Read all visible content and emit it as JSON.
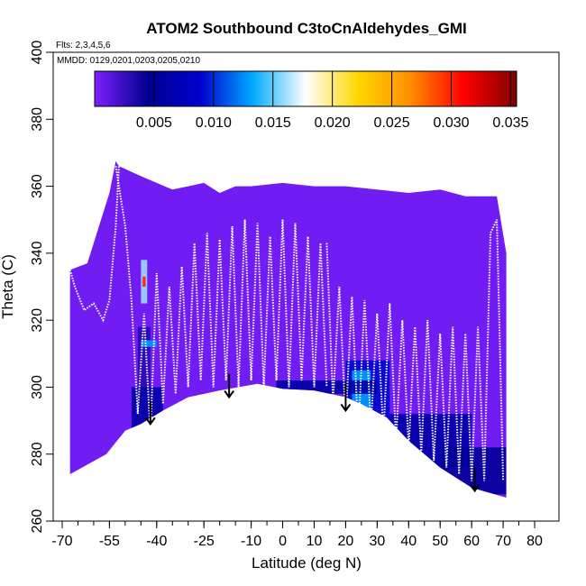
{
  "chart_data": {
    "type": "heatmap",
    "title": "ATOM2 Southbound C3toCnAldehydes_GMI",
    "flights_note": "Flts: 2,3,4,5,6",
    "dates_note": "MMDD: 0129,0201,0203,0205,0210",
    "xlabel": "Latitude (deg N)",
    "ylabel": "Theta (C)",
    "xlim": [
      -72,
      84
    ],
    "ylim": [
      260,
      400
    ],
    "x_ticks": [
      -70,
      -55,
      -40,
      -25,
      -10,
      0,
      10,
      20,
      30,
      40,
      50,
      60,
      70,
      80
    ],
    "x_minor_step": 5,
    "y_ticks": [
      260,
      280,
      300,
      320,
      340,
      360,
      380,
      400
    ],
    "colorbar": {
      "min": 0.0,
      "max": 0.0355,
      "ticks": [
        0.005,
        0.01,
        0.015,
        0.02,
        0.025,
        0.03,
        0.035
      ],
      "tick_labels": [
        "0.005",
        "0.010",
        "0.015",
        "0.020",
        "0.025",
        "0.030",
        "0.035"
      ],
      "colors": [
        "#7f1fff",
        "#00008f",
        "#0000d0",
        "#00aaff",
        "#ffffff",
        "#ffd700",
        "#ff8c00",
        "#ff0000",
        "#7f0000"
      ]
    },
    "field_outline": {
      "upper": [
        [
          -67.5,
          335
        ],
        [
          -62,
          337
        ],
        [
          -55,
          358
        ],
        [
          -53,
          367.5
        ],
        [
          -52,
          366
        ],
        [
          -45,
          363
        ],
        [
          -40,
          361
        ],
        [
          -35,
          359
        ],
        [
          -30,
          360
        ],
        [
          -25,
          361
        ],
        [
          -20,
          358
        ],
        [
          -15,
          360
        ],
        [
          -10,
          360
        ],
        [
          0,
          361
        ],
        [
          10,
          360
        ],
        [
          20,
          360
        ],
        [
          30,
          359
        ],
        [
          40,
          358
        ],
        [
          50,
          359
        ],
        [
          58,
          357
        ],
        [
          68,
          357
        ],
        [
          71,
          340
        ],
        [
          71,
          267
        ]
      ],
      "lower": [
        [
          71,
          267
        ],
        [
          60,
          270
        ],
        [
          50,
          276
        ],
        [
          40,
          284
        ],
        [
          33,
          291
        ],
        [
          25,
          295
        ],
        [
          20,
          297
        ],
        [
          10,
          299
        ],
        [
          0,
          299.5
        ],
        [
          -8,
          301
        ],
        [
          -20,
          299
        ],
        [
          -30,
          297
        ],
        [
          -38,
          293
        ],
        [
          -45,
          289
        ],
        [
          -50,
          287
        ],
        [
          -56,
          280
        ],
        [
          -67.5,
          274
        ]
      ],
      "background_value": 0.0005
    },
    "field_patches": [
      {
        "lat": [
          -48,
          -38
        ],
        "theta": [
          282,
          300
        ],
        "value": 0.006
      },
      {
        "lat": [
          -46,
          -42
        ],
        "theta": [
          300,
          318
        ],
        "value": 0.003
      },
      {
        "lat": [
          -45,
          -43
        ],
        "theta": [
          325,
          338
        ],
        "value": 0.016
      },
      {
        "lat": [
          -44.5,
          -43.5
        ],
        "theta": [
          330,
          333
        ],
        "value": 0.03
      },
      {
        "lat": [
          -45,
          -40
        ],
        "theta": [
          312,
          314
        ],
        "value": 0.013
      },
      {
        "lat": [
          20,
          34
        ],
        "theta": [
          288,
          308
        ],
        "value": 0.009
      },
      {
        "lat": [
          22,
          28
        ],
        "theta": [
          292,
          305
        ],
        "value": 0.013
      },
      {
        "lat": [
          34,
          60
        ],
        "theta": [
          276,
          292
        ],
        "value": 0.006
      },
      {
        "lat": [
          50,
          71
        ],
        "theta": [
          268,
          282
        ],
        "value": 0.005
      },
      {
        "lat": [
          -2,
          30
        ],
        "theta": [
          298,
          302
        ],
        "value": 0.006
      }
    ],
    "flight_tracks": [
      {
        "lat": [
          -67.5,
          -66,
          -63,
          -60,
          -57,
          -55,
          -53,
          -52
        ],
        "theta": [
          335,
          330,
          323,
          325,
          320,
          326,
          348,
          366
        ]
      },
      {
        "lat": [
          -53,
          -50,
          -48,
          -46,
          -44,
          -42,
          -40,
          -38,
          -36,
          -34,
          -32,
          -30,
          -28,
          -26,
          -24,
          -22,
          -20
        ],
        "theta": [
          366,
          348,
          326,
          292,
          322,
          286,
          334,
          295,
          330,
          298,
          336,
          300,
          343,
          302,
          346,
          300,
          344
        ]
      },
      {
        "lat": [
          -20,
          -18,
          -16,
          -14,
          -12,
          -10,
          -8,
          -6,
          -4,
          -2,
          0,
          2,
          4,
          6,
          8,
          10,
          12,
          14
        ],
        "theta": [
          344,
          302,
          348,
          300,
          350,
          302,
          349,
          300,
          345,
          302,
          350,
          300,
          349,
          302,
          345,
          300,
          343,
          300
        ]
      },
      {
        "lat": [
          14,
          16,
          18,
          20,
          22,
          24,
          26,
          28,
          30,
          32,
          34,
          36,
          38,
          40,
          42,
          44,
          46,
          48,
          50,
          52,
          54,
          56,
          58,
          60,
          62,
          64,
          66,
          68,
          70
        ],
        "theta": [
          343,
          296,
          330,
          290,
          327,
          286,
          326,
          288,
          322,
          286,
          325,
          284,
          320,
          282,
          318,
          280,
          320,
          278,
          316,
          276,
          318,
          274,
          316,
          272,
          318,
          272,
          346,
          350,
          272
        ]
      }
    ],
    "arrows": [
      {
        "lat": -42,
        "theta_top": 296,
        "theta_tip": 289
      },
      {
        "lat": -17,
        "theta_top": 304,
        "theta_tip": 297
      },
      {
        "lat": 20,
        "theta_top": 301,
        "theta_tip": 293
      },
      {
        "lat": 61,
        "theta_top": 276,
        "theta_tip": 269
      }
    ]
  }
}
